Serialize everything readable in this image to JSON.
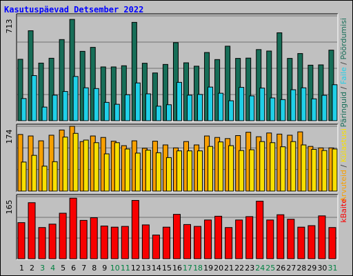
{
  "title": "Kasutuspäevad Detsember 2022",
  "chart_data": {
    "type": "bar",
    "categories": [
      "1",
      "2",
      "3",
      "4",
      "5",
      "6",
      "7",
      "8",
      "9",
      "10",
      "11",
      "12",
      "13",
      "14",
      "15",
      "16",
      "17",
      "18",
      "19",
      "20",
      "21",
      "22",
      "23",
      "24",
      "25",
      "26",
      "27",
      "28",
      "29",
      "30",
      "31"
    ],
    "weekend_days": [
      3,
      4,
      10,
      11,
      17,
      18,
      24,
      25,
      31
    ],
    "colors": {
      "background": "#c0c0c0",
      "plot": "#c0c0c0",
      "grid": "#707070",
      "hits": "#176e58",
      "files": "#20d0e8",
      "visits": "#f8a000",
      "sites": "#f8e000",
      "kbytes": "#f80000",
      "weekday_label": "#000000",
      "weekend_label": "#008040",
      "title": "#0000ff"
    },
    "panels": [
      {
        "id": "hits",
        "ymax_label": "713",
        "ymax": 713,
        "series": [
          {
            "name": "Päringuid",
            "color": "#176e58",
            "values": [
              418,
              612,
              392,
              425,
              552,
              689,
              472,
              499,
              366,
              366,
              374,
              669,
              391,
              325,
              383,
              531,
              394,
              371,
              464,
              416,
              507,
              424,
              426,
              484,
              474,
              598,
              424,
              457,
              378,
              380,
              480
            ]
          },
          {
            "name": "Faile",
            "color": "#20d0e8",
            "values": [
              151,
              307,
              93,
              174,
              199,
              301,
              224,
              219,
              125,
              112,
              177,
              257,
              183,
              99,
              109,
              261,
              174,
              179,
              229,
              187,
              136,
              227,
              169,
              222,
              155,
              144,
              211,
              224,
              149,
              173,
              245
            ]
          }
        ],
        "label": {
          "text_parts": [
            "Päringuid",
            " / ",
            "Faile",
            " / ",
            "Pöördumisi"
          ],
          "colors": [
            "#176e58",
            "#404040",
            "#20d0e8",
            "#404040",
            "#176e58"
          ]
        }
      },
      {
        "id": "visits",
        "ymax_label": "174",
        "ymax": 174,
        "series": [
          {
            "name": "Arvuteid",
            "color": "#f8a000",
            "values": [
              152,
              148,
              135,
              150,
              164,
              174,
              133,
              148,
              144,
              134,
              122,
              135,
              115,
              134,
              124,
              116,
              133,
              124,
              148,
              144,
              141,
              149,
              158,
              146,
              156,
              153,
              150,
              159,
              120,
              116,
              116
            ]
          },
          {
            "name": "Külastusi",
            "color": "#f8e000",
            "values": [
              78,
              96,
              67,
              79,
              145,
              155,
              137,
              130,
              100,
              130,
              113,
              102,
              110,
              103,
              90,
              108,
              108,
              108,
              120,
              132,
              122,
              109,
              111,
              133,
              130,
              119,
              133,
              124,
              112,
              109,
              113
            ]
          }
        ],
        "label": {
          "text_parts": [
            "Arvuteid",
            " / ",
            "Külastusi"
          ],
          "colors": [
            "#f8a000",
            "#404040",
            "#f8e000"
          ]
        }
      },
      {
        "id": "kbytes",
        "ymax_label": "165",
        "ymax": 165,
        "series": [
          {
            "name": "kBaite",
            "color": "#f80000",
            "values": [
              96,
              149,
              83,
              92,
              121,
              161,
              102,
              109,
              87,
              84,
              86,
              155,
              90,
              63,
              84,
              118,
              91,
              86,
              103,
              113,
              83,
              103,
              112,
              153,
              103,
              117,
              105,
              84,
              88,
              114,
              83
            ]
          }
        ],
        "label": {
          "text_parts": [
            "kBaite"
          ],
          "colors": [
            "#f80000"
          ]
        }
      }
    ]
  }
}
